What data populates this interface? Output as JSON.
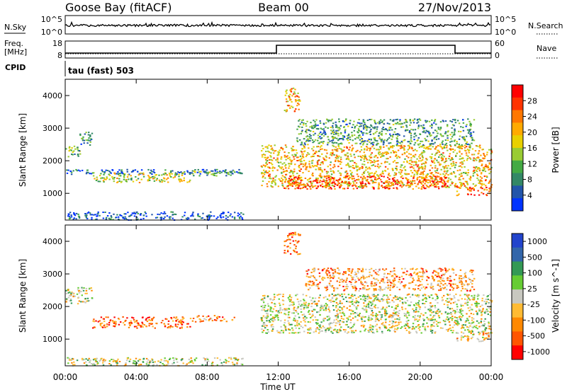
{
  "header": {
    "station": "Goose Bay (fitACF)",
    "beam": "Beam 00",
    "date": "27/Nov/2013"
  },
  "top_panels": {
    "nsky_label": "N.Sky",
    "nsearch_label": "N.Search",
    "noise_ticks": [
      "10^5",
      "10^0"
    ],
    "freq_label": "Freq.",
    "freq_unit": "[MHz]",
    "freq_ticks": [
      "18",
      "8"
    ],
    "nave_label": "Nave",
    "nave_ticks": [
      "60",
      "0"
    ],
    "cpid_label": "CPID",
    "cpid_text": "tau (fast) 503"
  },
  "chart_data": [
    {
      "type": "heatmap",
      "name": "power",
      "ylabel": "Slant Range [km]",
      "xlabel": "Time UT",
      "x_ticks": [
        "00:00",
        "04:00",
        "08:00",
        "12:00",
        "16:00",
        "20:00",
        "00:00"
      ],
      "x_range_hours": [
        0,
        24
      ],
      "y_ticks": [
        1000,
        2000,
        3000,
        4000
      ],
      "ylim": [
        180,
        4500
      ],
      "colorbar_label": "Power [dB]",
      "colorbar_ticks": [
        "28",
        "24",
        "20",
        "16",
        "12",
        "8",
        "4"
      ],
      "colorbar_colors": [
        "#ff0000",
        "#ff3300",
        "#ff7700",
        "#ffaa00",
        "#e8d000",
        "#99cc33",
        "#44aa44",
        "#338866",
        "#2255aa",
        "#0033ff"
      ],
      "regions": [
        {
          "t0": 0.0,
          "t1": 0.8,
          "r0": 2100,
          "r1": 2500,
          "level": 0.4
        },
        {
          "t0": 0.8,
          "t1": 1.5,
          "r0": 2500,
          "r1": 2950,
          "level": 0.25
        },
        {
          "t0": 0.0,
          "t1": 10.0,
          "r0": 1600,
          "r1": 1750,
          "level": 0.15
        },
        {
          "t0": 1.5,
          "t1": 7.0,
          "r0": 1350,
          "r1": 1650,
          "level": 0.5
        },
        {
          "t0": 7.0,
          "t1": 9.5,
          "r0": 1550,
          "r1": 1750,
          "level": 0.35
        },
        {
          "t0": 11.0,
          "t1": 24.0,
          "r0": 1200,
          "r1": 2500,
          "level": 0.6
        },
        {
          "t0": 12.3,
          "t1": 21.5,
          "r0": 1150,
          "r1": 1550,
          "level": 0.85
        },
        {
          "t0": 12.3,
          "t1": 13.2,
          "r0": 3500,
          "r1": 4250,
          "level": 0.65
        },
        {
          "t0": 13.0,
          "t1": 23.0,
          "r0": 2500,
          "r1": 3300,
          "level": 0.3
        },
        {
          "t0": 22.0,
          "t1": 24.0,
          "r0": 950,
          "r1": 1250,
          "level": 0.8
        },
        {
          "t0": 0.0,
          "t1": 10.0,
          "r0": 200,
          "r1": 450,
          "level": 0.1
        }
      ]
    },
    {
      "type": "heatmap",
      "name": "velocity",
      "ylabel": "Slant Range [km]",
      "xlabel": "Time UT",
      "x_ticks": [
        "00:00",
        "04:00",
        "08:00",
        "12:00",
        "16:00",
        "20:00",
        "00:00"
      ],
      "x_range_hours": [
        0,
        24
      ],
      "y_ticks": [
        1000,
        2000,
        3000,
        4000
      ],
      "ylim": [
        180,
        4500
      ],
      "colorbar_label": "Velocity [m s^-1]",
      "colorbar_ticks": [
        "1000",
        "500",
        "100",
        "25",
        "-25",
        "-100",
        "-500",
        "-1000"
      ],
      "colorbar_colors": [
        "#2244cc",
        "#3366aa",
        "#339955",
        "#66cc33",
        "#c8c8c0",
        "#ffbb33",
        "#ff8800",
        "#ff5500",
        "#ff0000"
      ],
      "regions": [
        {
          "t0": 0.0,
          "t1": 1.5,
          "r0": 2100,
          "r1": 2600,
          "level": 0.5
        },
        {
          "t0": 1.5,
          "t1": 7.0,
          "r0": 1350,
          "r1": 1700,
          "level": 0.78
        },
        {
          "t0": 7.0,
          "t1": 9.5,
          "r0": 1550,
          "r1": 1750,
          "level": 0.7
        },
        {
          "t0": 11.0,
          "t1": 24.0,
          "r0": 1200,
          "r1": 2400,
          "level": 0.5
        },
        {
          "t0": 12.3,
          "t1": 13.2,
          "r0": 3600,
          "r1": 4300,
          "level": 0.8
        },
        {
          "t0": 13.5,
          "t1": 23.0,
          "r0": 2500,
          "r1": 3200,
          "level": 0.7
        },
        {
          "t0": 22.0,
          "t1": 24.0,
          "r0": 950,
          "r1": 1250,
          "level": 0.6
        },
        {
          "t0": 0.0,
          "t1": 10.0,
          "r0": 200,
          "r1": 450,
          "level": 0.5
        }
      ]
    }
  ]
}
